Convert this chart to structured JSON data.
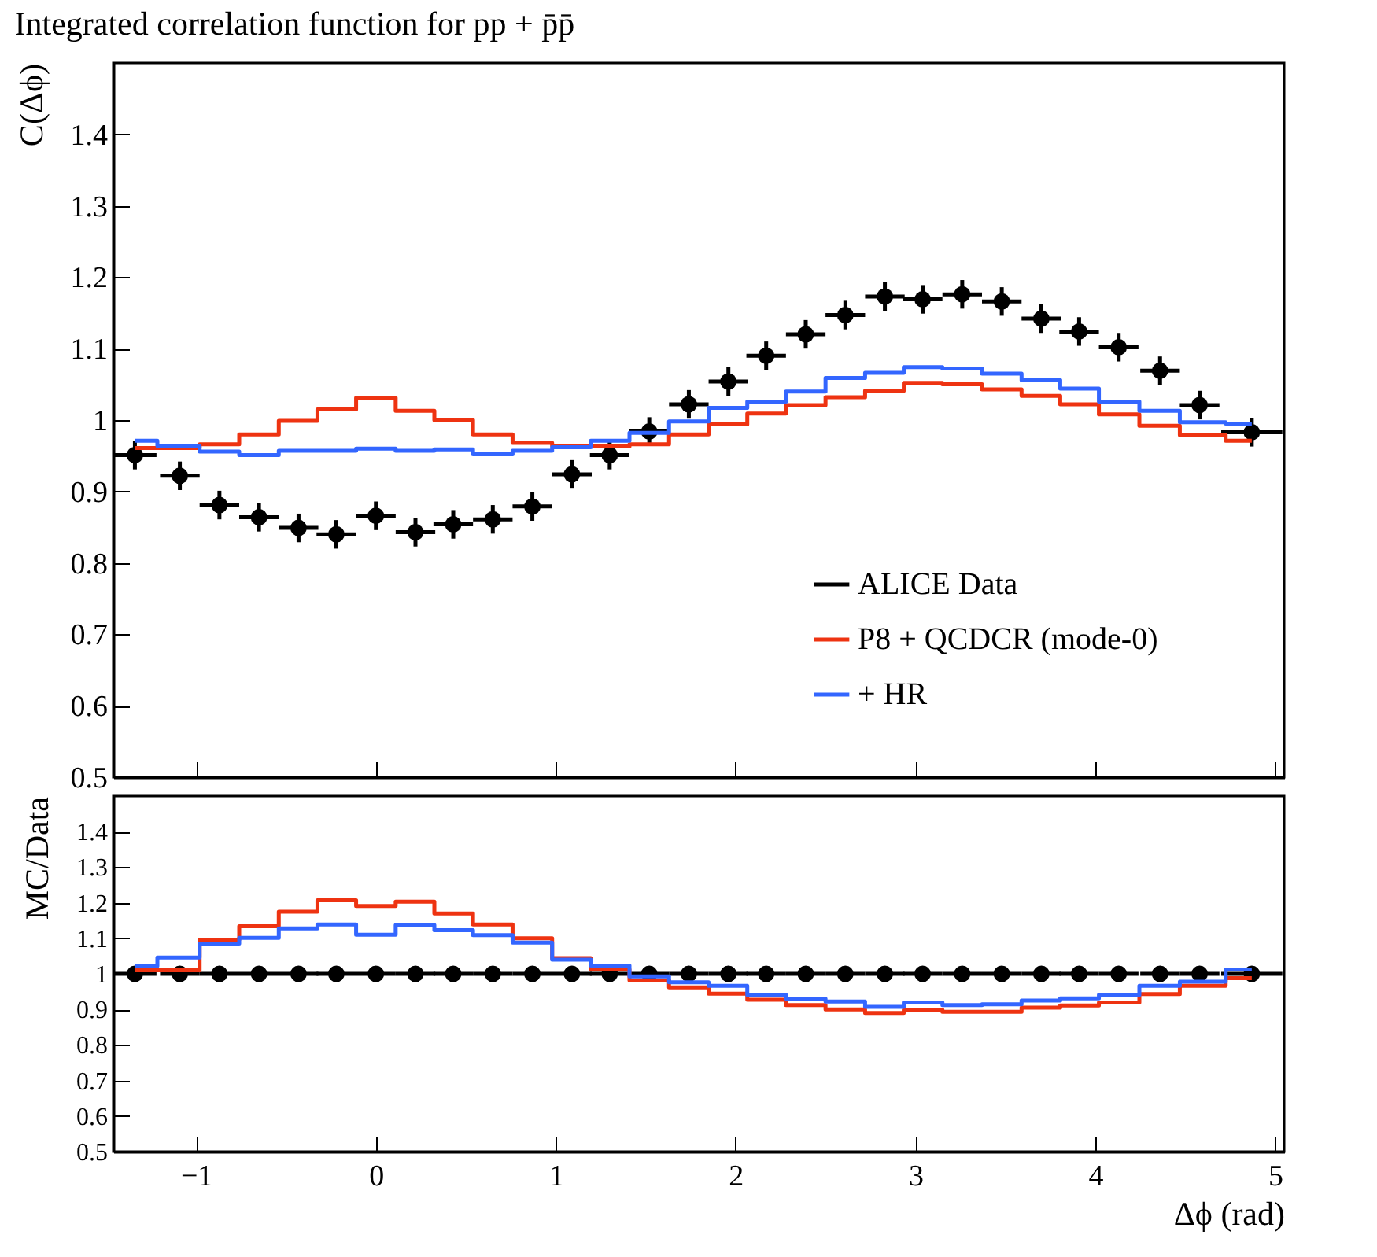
{
  "chart_data": [
    {
      "type": "scatter",
      "title": "Integrated correlation function for pp + p̄p̄",
      "ylabel": "C(Δϕ)",
      "xlim": [
        -1.46,
        5.05
      ],
      "xticks": [
        -1,
        0,
        1,
        2,
        3,
        4,
        5
      ],
      "ylim": [
        0.5,
        1.5
      ],
      "yticks": [
        0.5,
        0.6,
        0.7,
        0.8,
        0.9,
        1,
        1.1,
        1.2,
        1.3,
        1.4
      ],
      "tick_labels": "y",
      "legend": "bottom right",
      "x": [
        -1.34,
        -1.09,
        -0.87,
        -0.65,
        -0.43,
        -0.22,
        0,
        0.22,
        0.43,
        0.65,
        0.87,
        1.09,
        1.3,
        1.52,
        1.74,
        1.96,
        2.17,
        2.39,
        2.61,
        2.83,
        3.04,
        3.26,
        3.48,
        3.7,
        3.91,
        4.13,
        4.36,
        4.58,
        4.87
      ],
      "series": [
        {
          "name": "ALICE Data",
          "marker": "circle",
          "color": "#000000",
          "values": [
            0.951,
            0.922,
            0.881,
            0.864,
            0.849,
            0.84,
            0.866,
            0.843,
            0.854,
            0.861,
            0.879,
            0.924,
            0.951,
            0.984,
            1.022,
            1.054,
            1.09,
            1.12,
            1.147,
            1.173,
            1.169,
            1.176,
            1.166,
            1.142,
            1.124,
            1.102,
            1.069,
            1.021,
            0.983
          ],
          "errors": [
            0.02,
            0.02,
            0.02,
            0.02,
            0.02,
            0.02,
            0.02,
            0.02,
            0.02,
            0.02,
            0.02,
            0.02,
            0.02,
            0.02,
            0.02,
            0.02,
            0.02,
            0.02,
            0.02,
            0.02,
            0.02,
            0.02,
            0.02,
            0.02,
            0.02,
            0.02,
            0.02,
            0.02,
            0.02
          ],
          "xerrors": [
            0.12,
            0.11,
            0.11,
            0.11,
            0.11,
            0.11,
            0.11,
            0.11,
            0.11,
            0.11,
            0.11,
            0.11,
            0.11,
            0.11,
            0.11,
            0.11,
            0.11,
            0.11,
            0.11,
            0.11,
            0.11,
            0.11,
            0.11,
            0.11,
            0.11,
            0.11,
            0.11,
            0.11,
            0.17
          ]
        },
        {
          "name": "P8 + QCDCR (mode-0)",
          "type": "step",
          "color": "#ee3311",
          "values": [
            0.961,
            0.961,
            0.966,
            0.98,
            0.999,
            1.015,
            1.031,
            1.013,
            1.0,
            0.98,
            0.968,
            0.964,
            0.963,
            0.966,
            0.98,
            0.994,
            1.009,
            1.021,
            1.032,
            1.041,
            1.052,
            1.05,
            1.043,
            1.034,
            1.022,
            1.008,
            0.992,
            0.979,
            0.971
          ]
        },
        {
          "name": "+ HR",
          "type": "step",
          "color": "#3366ff",
          "values": [
            0.971,
            0.964,
            0.956,
            0.951,
            0.957,
            0.957,
            0.96,
            0.957,
            0.959,
            0.952,
            0.957,
            0.962,
            0.971,
            0.982,
            0.998,
            1.017,
            1.026,
            1.04,
            1.059,
            1.066,
            1.074,
            1.072,
            1.065,
            1.056,
            1.044,
            1.026,
            1.013,
            0.997,
            0.995
          ]
        }
      ]
    },
    {
      "type": "scatter",
      "ylabel": "MC/Data",
      "xlabel": "Δϕ (rad)",
      "xlim": [
        -1.46,
        5.05
      ],
      "xticks": [
        -1,
        0,
        1,
        2,
        3,
        4,
        5
      ],
      "ylim": [
        0.5,
        1.5
      ],
      "yticks": [
        0.5,
        0.6,
        0.7,
        0.8,
        0.9,
        1,
        1.1,
        1.2,
        1.3,
        1.4
      ],
      "x": [
        -1.34,
        -1.09,
        -0.87,
        -0.65,
        -0.43,
        -0.22,
        0,
        0.22,
        0.43,
        0.65,
        0.87,
        1.09,
        1.3,
        1.52,
        1.74,
        1.96,
        2.17,
        2.39,
        2.61,
        2.83,
        3.04,
        3.26,
        3.48,
        3.7,
        3.91,
        4.13,
        4.36,
        4.58,
        4.87
      ],
      "series": [
        {
          "marker": "circle",
          "color": "#000000",
          "values": [
            1,
            1,
            1,
            1,
            1,
            1,
            1,
            1,
            1,
            1,
            1,
            1,
            1,
            1,
            1,
            1,
            1,
            1,
            1,
            1,
            1,
            1,
            1,
            1,
            1,
            1,
            1,
            1,
            1
          ],
          "errors": [
            0.02,
            0.02,
            0.02,
            0.02,
            0.02,
            0.02,
            0.02,
            0.02,
            0.02,
            0.02,
            0.02,
            0.02,
            0.02,
            0.02,
            0.02,
            0.02,
            0.02,
            0.02,
            0.02,
            0.02,
            0.02,
            0.02,
            0.02,
            0.02,
            0.02,
            0.02,
            0.02,
            0.02,
            0.02
          ],
          "xerrors": [
            0.12,
            0.11,
            0.11,
            0.11,
            0.11,
            0.11,
            0.11,
            0.11,
            0.11,
            0.11,
            0.11,
            0.11,
            0.11,
            0.11,
            0.11,
            0.11,
            0.11,
            0.11,
            0.11,
            0.11,
            0.11,
            0.11,
            0.11,
            0.11,
            0.11,
            0.11,
            0.11,
            0.11,
            0.17
          ]
        },
        {
          "type": "step",
          "color": "#ee3311",
          "values": [
            1.01,
            1.01,
            1.096,
            1.134,
            1.175,
            1.207,
            1.191,
            1.203,
            1.17,
            1.139,
            1.1,
            1.044,
            1.012,
            0.982,
            0.962,
            0.944,
            0.927,
            0.912,
            0.9,
            0.89,
            0.899,
            0.893,
            0.893,
            0.905,
            0.911,
            0.919,
            0.943,
            0.966,
            0.988
          ]
        },
        {
          "type": "step",
          "color": "#3366ff",
          "values": [
            1.022,
            1.046,
            1.085,
            1.101,
            1.128,
            1.139,
            1.11,
            1.137,
            1.123,
            1.109,
            1.088,
            1.04,
            1.023,
            0.993,
            0.976,
            0.966,
            0.941,
            0.93,
            0.922,
            0.907,
            0.919,
            0.912,
            0.914,
            0.925,
            0.931,
            0.941,
            0.966,
            0.978,
            1.012
          ]
        }
      ]
    }
  ]
}
